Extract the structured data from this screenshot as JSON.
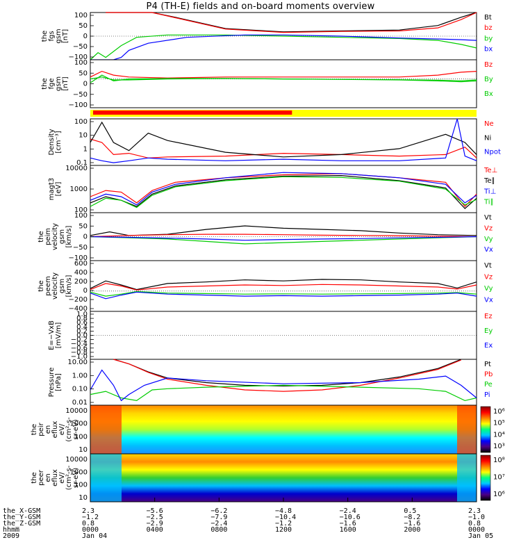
{
  "title": "P4 (TH-E) fields and on-board moments overview",
  "colors": {
    "black": "#000000",
    "red": "#ff0000",
    "green": "#00cc00",
    "blue": "#0000ff",
    "yellow": "#ffff00"
  },
  "chart_data": [
    {
      "type": "line",
      "panel": "fgs_gsm",
      "ylabel": [
        "the",
        "fgs",
        "gsm",
        "[nT]"
      ],
      "ylim": [
        -100,
        100
      ],
      "yticks": [
        "100",
        "50",
        "0",
        "−50",
        "−100"
      ],
      "legend": [
        "Bt",
        "bz",
        "by",
        "bx"
      ],
      "legend_colors": [
        "#000000",
        "#ff0000",
        "#00cc00",
        "#0000ff"
      ],
      "series": [
        {
          "x": [
            0.04,
            0.1,
            0.16,
            0.22,
            0.35,
            0.5,
            0.65,
            0.8,
            0.9,
            0.96,
            1.0
          ],
          "values": [
            100,
            100,
            100,
            80,
            32,
            18,
            22,
            26,
            45,
            80,
            100
          ]
        },
        {
          "x": [
            0.04,
            0.1,
            0.16,
            0.22,
            0.35,
            0.5,
            0.65,
            0.8,
            0.9,
            0.96,
            1.0
          ],
          "values": [
            100,
            100,
            100,
            78,
            30,
            16,
            20,
            22,
            35,
            70,
            100
          ]
        },
        {
          "x": [
            0.0,
            0.02,
            0.04,
            0.08,
            0.12,
            0.2,
            0.35,
            0.5,
            0.65,
            0.8,
            0.9,
            0.96,
            1.0
          ],
          "values": [
            -100,
            -70,
            -90,
            -40,
            -5,
            5,
            5,
            0,
            -5,
            -10,
            -18,
            -35,
            -50
          ]
        },
        {
          "x": [
            0.0,
            0.06,
            0.08,
            0.1,
            0.15,
            0.25,
            0.4,
            0.5,
            0.65,
            0.8,
            0.9,
            0.96,
            1.0
          ],
          "values": [
            -100,
            -100,
            -90,
            -60,
            -30,
            -5,
            5,
            5,
            0,
            -8,
            -12,
            -15,
            -18
          ]
        }
      ]
    },
    {
      "type": "line",
      "panel": "fge_gsm",
      "ylabel": [
        "the",
        "fge",
        "gsm",
        "[nT]"
      ],
      "ylim": [
        -150,
        100
      ],
      "yticks": [
        "100",
        "50",
        "0",
        "−50",
        "−100"
      ],
      "legend": [
        "Bz",
        "By",
        "Bx"
      ],
      "legend_colors": [
        "#ff0000",
        "#00cc00",
        "#00cc00"
      ],
      "series": [
        {
          "x": [
            0.0,
            0.03,
            0.06,
            0.1,
            0.2,
            0.35,
            0.5,
            0.65,
            0.8,
            0.9,
            0.96,
            1.0
          ],
          "values": [
            10,
            40,
            20,
            10,
            5,
            10,
            10,
            10,
            10,
            20,
            35,
            40
          ]
        },
        {
          "x": [
            0.0,
            0.03,
            0.06,
            0.1,
            0.2,
            0.35,
            0.5,
            0.65,
            0.8,
            0.9,
            0.96,
            1.0
          ],
          "values": [
            -20,
            20,
            -10,
            0,
            2,
            3,
            0,
            -2,
            -5,
            -10,
            -15,
            -10
          ]
        },
        {
          "x": [
            0.0,
            0.03,
            0.06,
            0.1,
            0.2,
            0.35,
            0.5,
            0.65,
            0.8,
            0.9,
            0.96,
            1.0
          ],
          "values": [
            0,
            10,
            -5,
            -5,
            0,
            2,
            0,
            -2,
            -4,
            -6,
            -10,
            -5
          ]
        }
      ]
    },
    {
      "type": "line",
      "panel": "density",
      "ylabel": [
        "Density",
        "[cm⁻³]"
      ],
      "ylim": [
        0.1,
        100
      ],
      "log": true,
      "yticks": [
        "100",
        "10",
        "1",
        "0.1"
      ],
      "legend": [
        "Ne",
        "Ni",
        "Npot"
      ],
      "legend_colors": [
        "#ff0000",
        "#000000",
        "#0000ff"
      ],
      "series": [
        {
          "x": [
            0.0,
            0.03,
            0.06,
            0.1,
            0.15,
            0.2,
            0.35,
            0.5,
            0.65,
            0.8,
            0.92,
            0.97,
            1.0
          ],
          "values": [
            5,
            3,
            0.5,
            0.6,
            0.3,
            0.35,
            0.4,
            0.6,
            0.5,
            0.4,
            0.5,
            1.5,
            0.3
          ]
        },
        {
          "x": [
            0.0,
            0.03,
            0.06,
            0.1,
            0.15,
            0.2,
            0.35,
            0.5,
            0.65,
            0.8,
            0.92,
            0.97,
            1.0
          ],
          "values": [
            3,
            60,
            3,
            0.9,
            12,
            4,
            0.7,
            0.35,
            0.5,
            1.2,
            10,
            3,
            0.5
          ]
        },
        {
          "x": [
            0.0,
            0.03,
            0.06,
            0.1,
            0.15,
            0.2,
            0.35,
            0.5,
            0.65,
            0.8,
            0.92,
            0.95,
            0.97,
            1.0
          ],
          "values": [
            0.3,
            0.2,
            0.15,
            0.2,
            0.3,
            0.25,
            0.2,
            0.25,
            0.2,
            0.2,
            0.3,
            100,
            0.4,
            0.2
          ]
        }
      ]
    },
    {
      "type": "line",
      "panel": "mag_temperature",
      "ylabel": [
        "magt3",
        "[eV]"
      ],
      "ylim": [
        50,
        10000
      ],
      "log": true,
      "yticks": [
        "10000",
        "1000",
        "100"
      ],
      "legend": [
        "Te⊥",
        "Te∥",
        "Ti⊥",
        "Ti∥"
      ],
      "legend_colors": [
        "#ff0000",
        "#000000",
        "#0000ff",
        "#00cc00"
      ],
      "series": [
        {
          "x": [
            0.0,
            0.04,
            0.08,
            0.12,
            0.16,
            0.22,
            0.35,
            0.5,
            0.65,
            0.8,
            0.92,
            0.97,
            1.0
          ],
          "values": [
            300,
            600,
            500,
            150,
            600,
            1500,
            2500,
            3500,
            4000,
            2500,
            1500,
            100,
            400
          ]
        },
        {
          "x": [
            0.0,
            0.04,
            0.08,
            0.12,
            0.16,
            0.22,
            0.35,
            0.5,
            0.65,
            0.8,
            0.92,
            0.97,
            1.0
          ],
          "values": [
            150,
            300,
            200,
            100,
            400,
            1000,
            2000,
            3000,
            3200,
            1800,
            800,
            80,
            250
          ]
        },
        {
          "x": [
            0.0,
            0.04,
            0.08,
            0.12,
            0.16,
            0.22,
            0.35,
            0.5,
            0.65,
            0.8,
            0.92,
            0.97,
            1.0
          ],
          "values": [
            200,
            400,
            300,
            120,
            500,
            1200,
            2500,
            4500,
            4000,
            2500,
            1200,
            150,
            350
          ]
        },
        {
          "x": [
            0.0,
            0.04,
            0.08,
            0.12,
            0.16,
            0.22,
            0.35,
            0.5,
            0.65,
            0.8,
            0.92,
            0.97,
            1.0
          ],
          "values": [
            100,
            250,
            200,
            90,
            350,
            900,
            1800,
            2800,
            2600,
            1700,
            700,
            120,
            220
          ]
        }
      ]
    },
    {
      "type": "line",
      "panel": "peim_velocity",
      "ylabel": [
        "the",
        "peim",
        "velocity",
        "gsm",
        "[km/s]"
      ],
      "ylim": [
        -100,
        100
      ],
      "yticks": [
        "100",
        "50",
        "0",
        "−50",
        "−100"
      ],
      "legend": [
        "Vt",
        "Vz",
        "Vy",
        "Vx"
      ],
      "legend_colors": [
        "#000000",
        "#ff0000",
        "#00cc00",
        "#0000ff"
      ],
      "series": [
        {
          "x": [
            0.0,
            0.05,
            0.1,
            0.2,
            0.3,
            0.4,
            0.5,
            0.6,
            0.7,
            0.8,
            0.9,
            1.0
          ],
          "values": [
            5,
            20,
            5,
            10,
            30,
            45,
            35,
            30,
            25,
            15,
            8,
            5
          ]
        },
        {
          "x": [
            0.0,
            0.1,
            0.2,
            0.3,
            0.4,
            0.5,
            0.6,
            0.7,
            0.8,
            0.9,
            1.0
          ],
          "values": [
            0,
            5,
            8,
            10,
            10,
            8,
            6,
            5,
            4,
            2,
            0
          ]
        },
        {
          "x": [
            0.0,
            0.1,
            0.2,
            0.3,
            0.4,
            0.5,
            0.6,
            0.7,
            0.8,
            0.9,
            1.0
          ],
          "values": [
            0,
            -5,
            -10,
            -20,
            -30,
            -25,
            -20,
            -15,
            -10,
            -5,
            0
          ]
        },
        {
          "x": [
            0.0,
            0.1,
            0.2,
            0.3,
            0.4,
            0.5,
            0.6,
            0.7,
            0.8,
            0.9,
            1.0
          ],
          "values": [
            0,
            -3,
            -6,
            -10,
            -15,
            -12,
            -10,
            -8,
            -5,
            -3,
            0
          ]
        }
      ]
    },
    {
      "type": "line",
      "panel": "peem_velocity",
      "ylabel": [
        "the",
        "peem",
        "velocity",
        "gsm",
        "[km/s]"
      ],
      "ylim": [
        -400,
        600
      ],
      "yticks": [
        "600",
        "400",
        "200",
        "0",
        "−200",
        "−400"
      ],
      "legend": [
        "Vt",
        "Vz",
        "Vy",
        "Vx"
      ],
      "legend_colors": [
        "#000000",
        "#ff0000",
        "#00cc00",
        "#0000ff"
      ],
      "series": [
        {
          "x": [
            0.0,
            0.04,
            0.08,
            0.12,
            0.2,
            0.3,
            0.4,
            0.5,
            0.6,
            0.7,
            0.8,
            0.9,
            0.95,
            1.0
          ],
          "values": [
            50,
            200,
            120,
            30,
            150,
            180,
            220,
            200,
            230,
            220,
            180,
            150,
            60,
            180
          ]
        },
        {
          "x": [
            0.0,
            0.04,
            0.08,
            0.12,
            0.2,
            0.3,
            0.4,
            0.5,
            0.6,
            0.7,
            0.8,
            0.9,
            0.95,
            1.0
          ],
          "values": [
            30,
            150,
            100,
            20,
            80,
            100,
            120,
            110,
            130,
            120,
            100,
            80,
            40,
            120
          ]
        },
        {
          "x": [
            0.0,
            0.04,
            0.08,
            0.12,
            0.2,
            0.3,
            0.4,
            0.5,
            0.6,
            0.7,
            0.8,
            0.9,
            0.95,
            1.0
          ],
          "values": [
            -20,
            -100,
            -60,
            -10,
            -40,
            -50,
            -60,
            -55,
            -60,
            -55,
            -50,
            -40,
            -30,
            -60
          ]
        },
        {
          "x": [
            0.0,
            0.04,
            0.08,
            0.12,
            0.2,
            0.3,
            0.4,
            0.5,
            0.6,
            0.7,
            0.8,
            0.9,
            0.95,
            1.0
          ],
          "values": [
            -40,
            -150,
            -80,
            -20,
            -60,
            -80,
            -100,
            -90,
            -100,
            -90,
            -80,
            -60,
            -40,
            -100
          ]
        }
      ]
    },
    {
      "type": "line",
      "panel": "e_field",
      "ylabel": [
        "E=−VxB",
        "[mV/m]"
      ],
      "ylim": [
        -1,
        1
      ],
      "yticks": [
        "1.0",
        "0.8",
        "0.6",
        "0.4",
        "0.2",
        "0.0",
        "−0.2",
        "−0.4",
        "−0.6",
        "−0.8",
        "−1.0"
      ],
      "legend": [
        "Ez",
        "Ey",
        "Ex"
      ],
      "legend_colors": [
        "#ff0000",
        "#00cc00",
        "#0000ff"
      ],
      "series": []
    },
    {
      "type": "line",
      "panel": "pressure",
      "ylabel": [
        "Pressure",
        "[nPa]"
      ],
      "ylim": [
        0.01,
        10
      ],
      "log": true,
      "yticks": [
        "10.00",
        "1.00",
        "0.10",
        "0.01"
      ],
      "legend": [
        "Pt",
        "Pb",
        "Pe",
        "Pi"
      ],
      "legend_colors": [
        "#000000",
        "#ff0000",
        "#00cc00",
        "#0000ff"
      ],
      "series": [
        {
          "x": [
            0.06,
            0.1,
            0.15,
            0.2,
            0.3,
            0.4,
            0.5,
            0.6,
            0.7,
            0.8,
            0.9,
            0.96
          ],
          "values": [
            10,
            5,
            1.5,
            0.6,
            0.3,
            0.2,
            0.18,
            0.2,
            0.3,
            0.7,
            2.5,
            10
          ]
        },
        {
          "x": [
            0.06,
            0.1,
            0.15,
            0.2,
            0.3,
            0.4,
            0.5,
            0.6,
            0.7,
            0.8,
            0.9,
            0.96
          ],
          "values": [
            10,
            5,
            1.4,
            0.5,
            0.2,
            0.1,
            0.08,
            0.1,
            0.2,
            0.6,
            2.2,
            9
          ]
        },
        {
          "x": [
            0.0,
            0.04,
            0.08,
            0.12,
            0.16,
            0.2,
            0.3,
            0.5,
            0.7,
            0.85,
            0.92,
            0.97,
            1.0
          ],
          "values": [
            0.05,
            0.08,
            0.03,
            0.02,
            0.1,
            0.12,
            0.15,
            0.2,
            0.15,
            0.12,
            0.08,
            0.02,
            0.03
          ]
        },
        {
          "x": [
            0.0,
            0.03,
            0.06,
            0.08,
            0.1,
            0.14,
            0.2,
            0.3,
            0.5,
            0.7,
            0.85,
            0.92,
            0.96,
            1.0
          ],
          "values": [
            0.1,
            2,
            0.2,
            0.02,
            0.05,
            0.2,
            0.6,
            0.4,
            0.25,
            0.3,
            0.5,
            0.8,
            0.2,
            0.03
          ]
        }
      ]
    },
    {
      "type": "heatmap",
      "panel": "peir_energy_spectrogram",
      "ylabel": [
        "the",
        "peir",
        "en",
        "eflux",
        "eV/",
        "(cm²-s-",
        "sr-eV)"
      ],
      "yticks": [
        "10000",
        "1000",
        "100",
        "10"
      ],
      "colorbar_ticks": [
        "10⁶",
        "10⁵",
        "10⁴",
        "10³"
      ],
      "colorscale": [
        "#4b0082",
        "#0000ff",
        "#00c8ff",
        "#00ff7f",
        "#ffff00",
        "#ff8000",
        "#ff0000",
        "#8b0000"
      ]
    },
    {
      "type": "heatmap",
      "panel": "peer_energy_spectrogram",
      "ylabel": [
        "the",
        "peer",
        "en",
        "eflux",
        "eV/",
        "(cm²-s-",
        "sr-eV)"
      ],
      "yticks": [
        "10000",
        "1000",
        "100",
        "10"
      ],
      "colorbar_ticks": [
        "10⁸",
        "10⁷",
        "10⁶"
      ],
      "colorscale": [
        "#4b0082",
        "#0000ff",
        "#00c8ff",
        "#00ff7f",
        "#ffff00",
        "#ff8000",
        "#ff0000",
        "#8b0000"
      ]
    }
  ],
  "time_axis": {
    "row_labels": [
      "the_X-GSM",
      "the_Y-GSM",
      "the_Z-GSM",
      "hhmm",
      "2009"
    ],
    "columns": [
      [
        "2.3",
        "−1.2",
        "0.8",
        "0000",
        "Jan 04"
      ],
      [
        "−5.6",
        "−2.5",
        "−2.9",
        "0400",
        ""
      ],
      [
        "−6.2",
        "−7.9",
        "−2.4",
        "0800",
        ""
      ],
      [
        "−4.8",
        "−10.4",
        "−1.2",
        "1200",
        ""
      ],
      [
        "−2.4",
        "−10.6",
        "−1.6",
        "1600",
        ""
      ],
      [
        "0.5",
        "−8.2",
        "−1.6",
        "2000",
        ""
      ],
      [
        "2.3",
        "−1.0",
        "0.8",
        "0000",
        "Jan 05"
      ]
    ]
  }
}
